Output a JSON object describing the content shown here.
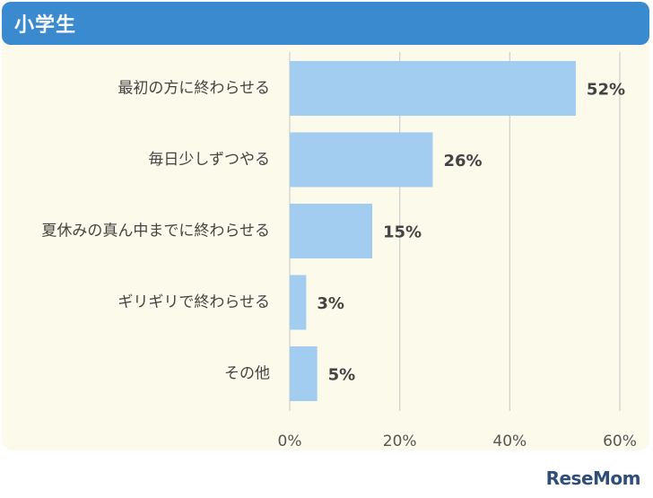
{
  "header": {
    "title": "小学生"
  },
  "logo": {
    "text": "ReseMom"
  },
  "colors": {
    "header": "#3a8ad0",
    "panel": "#fcfaea",
    "bar": "#a3cdf0",
    "grid": "#cfcfcf"
  },
  "chart_data": {
    "type": "bar",
    "orientation": "horizontal",
    "title": "",
    "xlabel": "",
    "ylabel": "",
    "categories": [
      "最初の方に終わらせる",
      "毎日少しずつやる",
      "夏休みの真ん中までに終わらせる",
      "ギリギリで終わらせる",
      "その他"
    ],
    "values": [
      52,
      26,
      15,
      3,
      5
    ],
    "value_labels": [
      "52%",
      "26%",
      "15%",
      "3%",
      "5%"
    ],
    "xlim": [
      0,
      60
    ],
    "ticks": [
      0,
      20,
      40,
      60
    ],
    "tick_labels": [
      "0%",
      "20%",
      "40%",
      "60%"
    ],
    "grid": true,
    "legend": "none"
  }
}
